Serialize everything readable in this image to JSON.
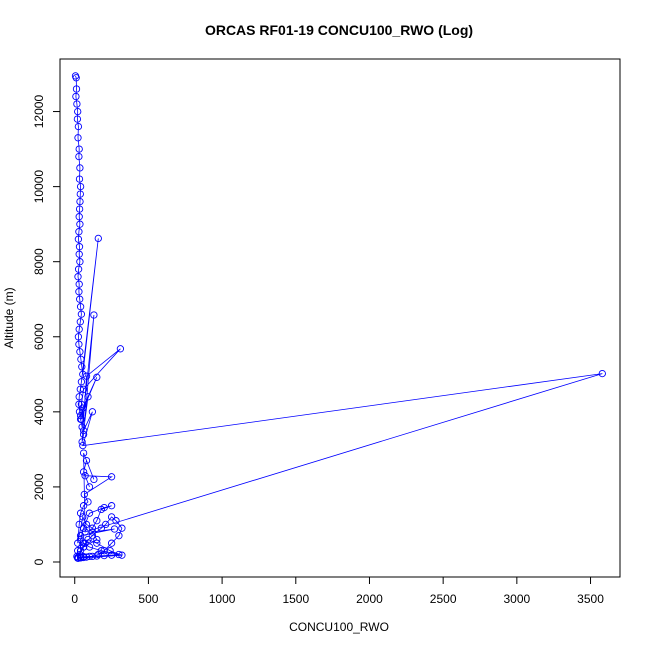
{
  "chart_data": {
    "type": "line",
    "title": "ORCAS RF01-19 CONCU100_RWO (Log)",
    "xlabel": "CONCU100_RWO",
    "ylabel": "Altitude (m)",
    "xlim": [
      -100,
      3700
    ],
    "ylim": [
      -400,
      13400
    ],
    "xticks": [
      0,
      500,
      1000,
      1500,
      2000,
      2500,
      3000,
      3500
    ],
    "yticks": [
      0,
      2000,
      4000,
      6000,
      8000,
      10000,
      12000
    ],
    "grid": false,
    "legend": "none",
    "marker": "open-circle",
    "series_color": "#0000ff",
    "series": [
      {
        "x": [
          5,
          10,
          12,
          8,
          15,
          20,
          18,
          25,
          22,
          30,
          28,
          35,
          32,
          40,
          38,
          36,
          33,
          30,
          35,
          28,
          25,
          32,
          30,
          35,
          26,
          22,
          30,
          28,
          34,
          40,
          45,
          38,
          30,
          25,
          28,
          35,
          42,
          48,
          55,
          160,
          45,
          38,
          30,
          28,
          32,
          40,
          50,
          130,
          60,
          50,
          80,
          310,
          60,
          45,
          40,
          150,
          55,
          45,
          90,
          60,
          120,
          55,
          3580,
          70,
          60,
          130,
          80,
          60,
          100,
          70,
          250,
          65,
          90,
          60,
          40,
          30,
          20,
          55,
          80,
          120,
          150,
          180,
          250,
          200,
          100,
          60,
          40,
          20,
          15,
          60,
          150,
          120,
          270,
          40,
          60,
          100,
          180,
          300,
          250,
          200,
          150,
          100,
          60,
          40,
          20,
          40,
          70,
          120,
          180,
          210,
          250,
          280,
          320,
          300,
          250,
          200,
          160,
          120,
          80,
          60,
          40,
          20,
          35,
          60,
          90,
          150,
          240,
          320,
          25
        ],
        "y": [
          12950,
          12900,
          12600,
          12400,
          12200,
          12000,
          11800,
          11600,
          11300,
          11000,
          10800,
          10500,
          10200,
          10000,
          9800,
          9600,
          9400,
          9200,
          9000,
          8800,
          8600,
          8400,
          8200,
          8000,
          7800,
          7600,
          7400,
          7200,
          7000,
          6800,
          6600,
          6400,
          6200,
          6000,
          5800,
          5600,
          5400,
          5200,
          5000,
          8620,
          4800,
          4600,
          4400,
          4200,
          4000,
          3800,
          3600,
          6580,
          3400,
          3200,
          4950,
          5680,
          4600,
          4200,
          3900,
          4920,
          4100,
          3800,
          4400,
          3500,
          4000,
          3100,
          5020,
          800,
          2900,
          2200,
          2700,
          2400,
          2000,
          2300,
          2270,
          1800,
          1600,
          1500,
          1300,
          1000,
          500,
          1200,
          1000,
          900,
          1100,
          1400,
          1500,
          1450,
          1300,
          900,
          600,
          300,
          150,
          400,
          600,
          800,
          880,
          700,
          500,
          400,
          300,
          200,
          180,
          170,
          160,
          150,
          140,
          130,
          120,
          300,
          500,
          700,
          900,
          1000,
          1200,
          1100,
          900,
          700,
          500,
          300,
          200,
          150,
          130,
          120,
          110,
          100,
          200,
          400,
          600,
          500,
          300,
          180,
          100
        ]
      }
    ]
  }
}
